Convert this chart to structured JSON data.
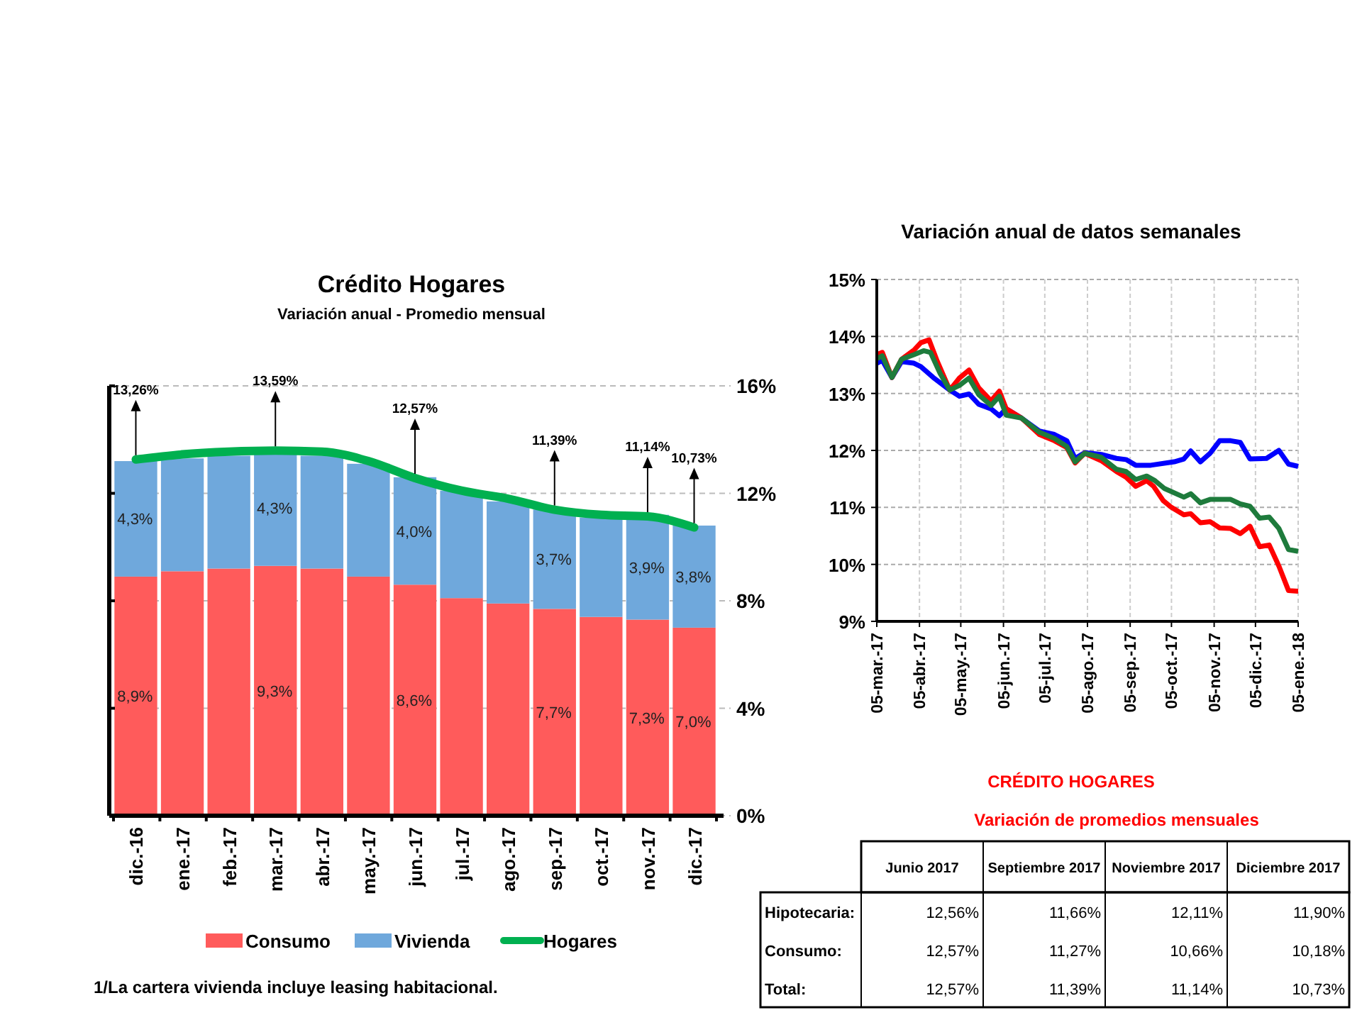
{
  "chart_data": [
    {
      "type": "bar",
      "stacked": true,
      "title": "Crédito Hogares",
      "subtitle": "Variación anual -  Promedio mensual",
      "categories": [
        "dic.-16",
        "ene.-17",
        "feb.-17",
        "mar.-17",
        "abr.-17",
        "may.-17",
        "jun.-17",
        "jul.-17",
        "ago.-17",
        "sep.-17",
        "oct.-17",
        "nov.-17",
        "dic.-17"
      ],
      "series": [
        {
          "name": "Consumo",
          "color": "#ff5b5b",
          "values": [
            8.9,
            9.1,
            9.2,
            9.3,
            9.2,
            8.9,
            8.6,
            8.1,
            7.9,
            7.7,
            7.4,
            7.3,
            7.0
          ],
          "value_labels": [
            "8,9%",
            null,
            null,
            "9,3%",
            null,
            null,
            "8,6%",
            null,
            null,
            "7,7%",
            null,
            "7,3%",
            "7,0%"
          ]
        },
        {
          "name": "Vivienda",
          "color": "#6fa8dc",
          "values": [
            4.3,
            4.2,
            4.2,
            4.3,
            4.2,
            4.2,
            4.0,
            4.0,
            3.8,
            3.7,
            3.7,
            3.9,
            3.8
          ],
          "value_labels": [
            "4,3%",
            null,
            null,
            "4,3%",
            null,
            null,
            "4,0%",
            null,
            null,
            "3,7%",
            null,
            "3,9%",
            "3,8%"
          ]
        },
        {
          "name": "Hogares",
          "type": "line",
          "color": "#00b050",
          "values": [
            13.26,
            13.45,
            13.55,
            13.59,
            13.55,
            13.2,
            12.57,
            12.1,
            11.8,
            11.39,
            11.2,
            11.14,
            10.73
          ],
          "value_labels": [
            "13,26%",
            null,
            null,
            "13,59%",
            null,
            null,
            "12,57%",
            null,
            null,
            "11,39%",
            null,
            "11,14%",
            "10,73%"
          ]
        }
      ],
      "ylim": [
        0,
        16
      ],
      "yticks": [
        {
          "value": 0,
          "label": "0%"
        },
        {
          "value": 4,
          "label": "4%"
        },
        {
          "value": 8,
          "label": "8%"
        },
        {
          "value": 12,
          "label": "12%"
        },
        {
          "value": 16,
          "label": "16%"
        }
      ],
      "grid": "y",
      "legend": "bottom",
      "annotations": [
        "1/La cartera vivienda incluye leasing habitacional."
      ]
    },
    {
      "type": "line",
      "title": "Variación anual  de datos semanales",
      "xlim": [
        "2017-03-05",
        "2018-01-05"
      ],
      "xticks": [
        {
          "value": "2017-03-05",
          "label": "05-mar.-17"
        },
        {
          "value": "2017-04-05",
          "label": "05-abr.-17"
        },
        {
          "value": "2017-05-05",
          "label": "05-may.-17"
        },
        {
          "value": "2017-06-05",
          "label": "05-jun.-17"
        },
        {
          "value": "2017-07-05",
          "label": "05-jul.-17"
        },
        {
          "value": "2017-08-05",
          "label": "05-ago.-17"
        },
        {
          "value": "2017-09-05",
          "label": "05-sep.-17"
        },
        {
          "value": "2017-10-05",
          "label": "05-oct.-17"
        },
        {
          "value": "2017-11-05",
          "label": "05-nov.-17"
        },
        {
          "value": "2017-12-05",
          "label": "05-dic.-17"
        },
        {
          "value": "2018-01-05",
          "label": "05-ene.-18"
        }
      ],
      "ylim": [
        9,
        15
      ],
      "yticks": [
        {
          "value": 9,
          "label": "9%"
        },
        {
          "value": 10,
          "label": "10%"
        },
        {
          "value": 11,
          "label": "11%"
        },
        {
          "value": 12,
          "label": "12%"
        },
        {
          "value": 13,
          "label": "13%"
        },
        {
          "value": 14,
          "label": "14%"
        },
        {
          "value": 15,
          "label": "15%"
        }
      ],
      "grid": true,
      "series": [
        {
          "color": "#0000ff",
          "x": [
            "2017-03-05",
            "2017-03-09",
            "2017-03-16",
            "2017-03-23",
            "2017-04-01",
            "2017-04-06",
            "2017-04-15",
            "2017-04-27",
            "2017-05-04",
            "2017-05-11",
            "2017-05-18",
            "2017-05-27",
            "2017-06-02",
            "2017-06-07",
            "2017-06-18",
            "2017-07-01",
            "2017-07-12",
            "2017-07-21",
            "2017-07-27",
            "2017-08-03",
            "2017-08-15",
            "2017-08-26",
            "2017-09-02",
            "2017-09-09",
            "2017-09-20",
            "2017-10-07",
            "2017-10-14",
            "2017-10-19",
            "2017-10-26",
            "2017-11-02",
            "2017-11-09",
            "2017-11-17",
            "2017-11-24",
            "2017-12-01",
            "2017-12-13",
            "2017-12-22",
            "2017-12-29",
            "2018-01-05"
          ],
          "values": [
            13.53,
            13.58,
            13.28,
            13.56,
            13.53,
            13.47,
            13.28,
            13.06,
            12.95,
            12.99,
            12.81,
            12.73,
            12.61,
            12.73,
            12.57,
            12.34,
            12.28,
            12.17,
            11.86,
            11.96,
            11.93,
            11.86,
            11.84,
            11.74,
            11.74,
            11.8,
            11.85,
            11.99,
            11.8,
            11.95,
            12.17,
            12.17,
            12.14,
            11.85,
            11.86,
            12.0,
            11.76,
            11.72
          ]
        },
        {
          "color": "#ff0000",
          "x": [
            "2017-03-05",
            "2017-03-09",
            "2017-03-16",
            "2017-03-23",
            "2017-04-01",
            "2017-04-06",
            "2017-04-12",
            "2017-04-18",
            "2017-04-27",
            "2017-05-04",
            "2017-05-11",
            "2017-05-18",
            "2017-05-27",
            "2017-06-02",
            "2017-06-07",
            "2017-06-18",
            "2017-07-01",
            "2017-07-12",
            "2017-07-21",
            "2017-07-27",
            "2017-08-03",
            "2017-08-15",
            "2017-08-26",
            "2017-09-02",
            "2017-09-09",
            "2017-09-17",
            "2017-09-22",
            "2017-09-29",
            "2017-10-05",
            "2017-10-14",
            "2017-10-19",
            "2017-10-26",
            "2017-11-02",
            "2017-11-09",
            "2017-11-17",
            "2017-11-24",
            "2017-12-01",
            "2017-12-08",
            "2017-12-15",
            "2017-12-22",
            "2017-12-29",
            "2018-01-05"
          ],
          "values": [
            13.68,
            13.72,
            13.28,
            13.6,
            13.76,
            13.89,
            13.94,
            13.56,
            13.06,
            13.27,
            13.41,
            13.1,
            12.87,
            13.04,
            12.73,
            12.57,
            12.28,
            12.17,
            12.05,
            11.78,
            11.95,
            11.82,
            11.63,
            11.53,
            11.37,
            11.47,
            11.37,
            11.12,
            11.0,
            10.87,
            10.89,
            10.73,
            10.75,
            10.64,
            10.63,
            10.54,
            10.67,
            10.31,
            10.34,
            9.97,
            9.54,
            9.53
          ]
        },
        {
          "color": "#1e7b3c",
          "x": [
            "2017-03-05",
            "2017-03-09",
            "2017-03-16",
            "2017-03-23",
            "2017-04-01",
            "2017-04-08",
            "2017-04-13",
            "2017-04-20",
            "2017-04-27",
            "2017-05-04",
            "2017-05-11",
            "2017-05-18",
            "2017-05-27",
            "2017-06-02",
            "2017-06-07",
            "2017-06-18",
            "2017-07-01",
            "2017-07-12",
            "2017-07-21",
            "2017-07-27",
            "2017-08-03",
            "2017-08-15",
            "2017-08-26",
            "2017-09-02",
            "2017-09-09",
            "2017-09-17",
            "2017-09-23",
            "2017-09-30",
            "2017-10-14",
            "2017-10-19",
            "2017-10-26",
            "2017-11-02",
            "2017-11-17",
            "2017-11-24",
            "2017-12-01",
            "2017-12-08",
            "2017-12-15",
            "2017-12-22",
            "2017-12-29",
            "2018-01-05"
          ],
          "values": [
            13.61,
            13.66,
            13.28,
            13.6,
            13.68,
            13.75,
            13.72,
            13.35,
            13.06,
            13.14,
            13.27,
            12.98,
            12.79,
            12.95,
            12.62,
            12.57,
            12.32,
            12.21,
            12.07,
            11.8,
            11.95,
            11.88,
            11.67,
            11.63,
            11.49,
            11.55,
            11.47,
            11.33,
            11.18,
            11.24,
            11.08,
            11.14,
            11.14,
            11.06,
            11.02,
            10.81,
            10.83,
            10.63,
            10.26,
            10.23
          ]
        }
      ]
    },
    {
      "type": "other",
      "title": "CRÉDITO HOGARES",
      "subtitle": "Variación de promedios mensuales",
      "categories": [
        "Junio 2017",
        "Septiembre 2017",
        "Noviembre 2017",
        "Diciembre 2017"
      ],
      "y_categories": [
        "Hipotecaria:",
        "Consumo:",
        "Total:"
      ],
      "cell_labels": [
        [
          "12,56%",
          "11,66%",
          "12,11%",
          "11,90%"
        ],
        [
          "12,57%",
          "11,27%",
          "10,66%",
          "10,18%"
        ],
        [
          "12,57%",
          "11,39%",
          "11,14%",
          "10,73%"
        ]
      ]
    }
  ]
}
